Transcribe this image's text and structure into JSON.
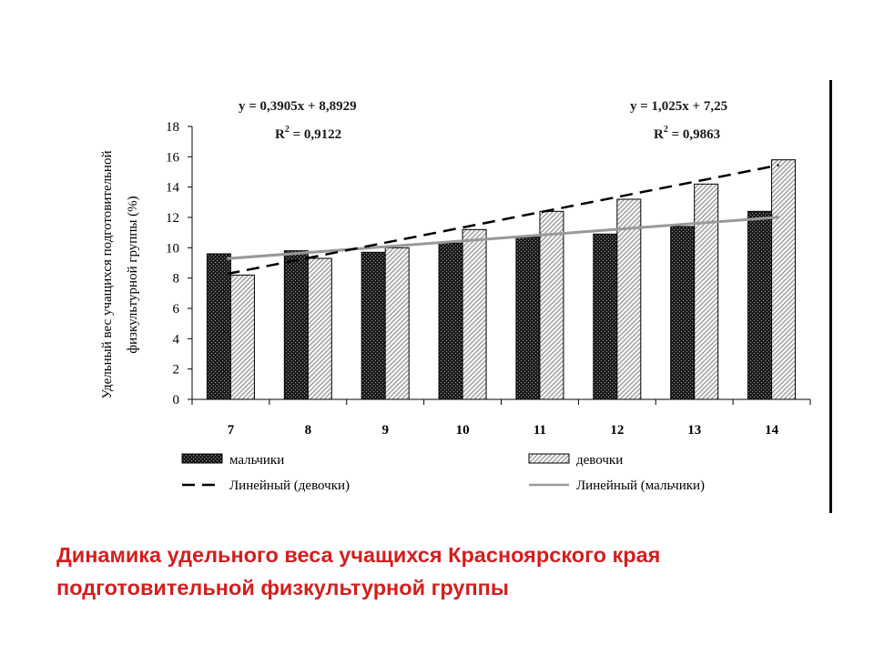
{
  "slide": {
    "caption": "Динамика удельного веса учащихся Красноярского края подготовительной физкультурной группы",
    "caption_color": "#d21f1f"
  },
  "chart_data": {
    "type": "bar",
    "title": "",
    "xlabel": "",
    "ylabel_line1": "Удельный вес учащихся подготовительной",
    "ylabel_line2": "физкультурной группы (%)",
    "categories": [
      "7",
      "8",
      "9",
      "10",
      "11",
      "12",
      "13",
      "14"
    ],
    "ylim": [
      0,
      18
    ],
    "yticks": [
      "0",
      "2",
      "4",
      "6",
      "8",
      "10",
      "12",
      "14",
      "16",
      "18"
    ],
    "grid": false,
    "legend_position": "bottom",
    "series": [
      {
        "name": "мальчики",
        "values": [
          9.6,
          9.8,
          9.7,
          10.3,
          10.7,
          10.9,
          11.4,
          12.4
        ],
        "pattern": "dark-checker",
        "color": "#1a1a1a"
      },
      {
        "name": "девочки",
        "values": [
          8.2,
          9.3,
          10.0,
          11.2,
          12.4,
          13.2,
          14.2,
          15.8
        ],
        "pattern": "light-hatch",
        "color": "#f0f0f0"
      }
    ],
    "trendlines": [
      {
        "name": "Линейный (девочки)",
        "style": "dashed",
        "color": "#000000",
        "equation": "y = 1,025x + 7,25",
        "r2_label": "R",
        "r2_exp": "2",
        "r2_value": " = 0,9863",
        "slope": 1.025,
        "intercept": 7.25
      },
      {
        "name": "Линейный (мальчики)",
        "style": "solid",
        "color": "#999999",
        "equation": "y = 0,3905x + 8,8929",
        "r2_label": "R",
        "r2_exp": "2",
        "r2_value": " = 0,9122",
        "slope": 0.3905,
        "intercept": 8.8929
      }
    ]
  }
}
